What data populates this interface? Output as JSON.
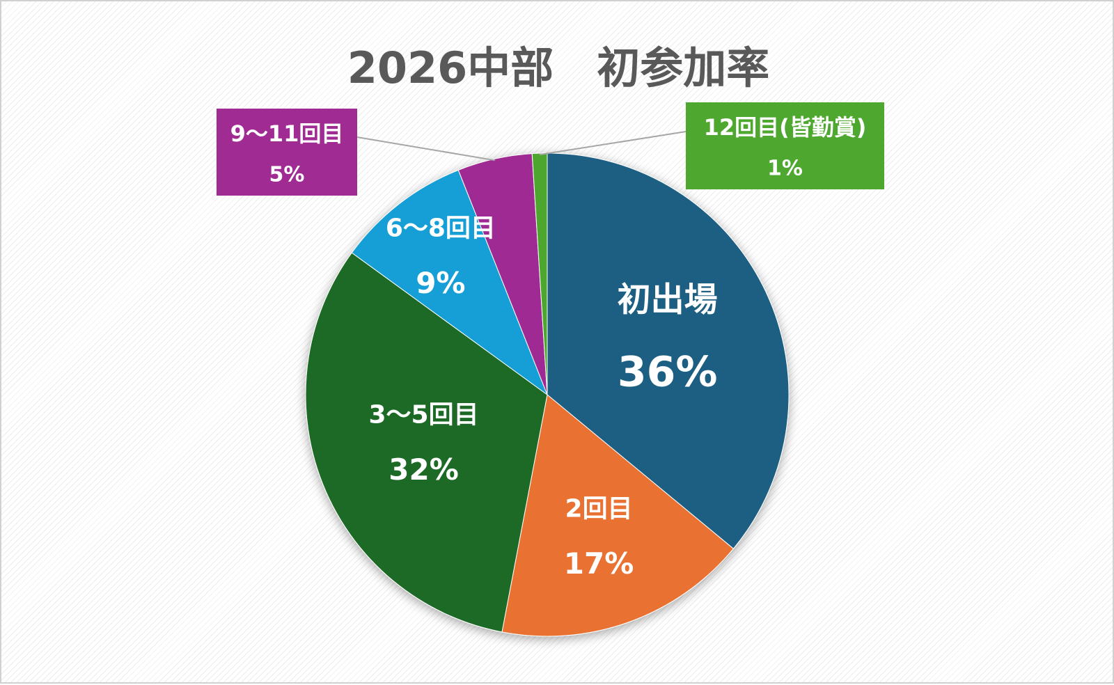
{
  "chart_data": {
    "type": "pie",
    "title": "2026中部　初参加率",
    "categories": [
      "初出場",
      "2回目",
      "3〜5回目",
      "6〜8回目",
      "9〜11回目",
      "12回目(皆勤賞)"
    ],
    "values": [
      36,
      17,
      32,
      9,
      5,
      1
    ],
    "value_labels": [
      "36%",
      "17%",
      "32%",
      "9%",
      "5%",
      "1%"
    ],
    "colors": [
      "#1a5f82",
      "#e97132",
      "#1b6b25",
      "#129fd6",
      "#a02b93",
      "#4ea72e"
    ]
  }
}
